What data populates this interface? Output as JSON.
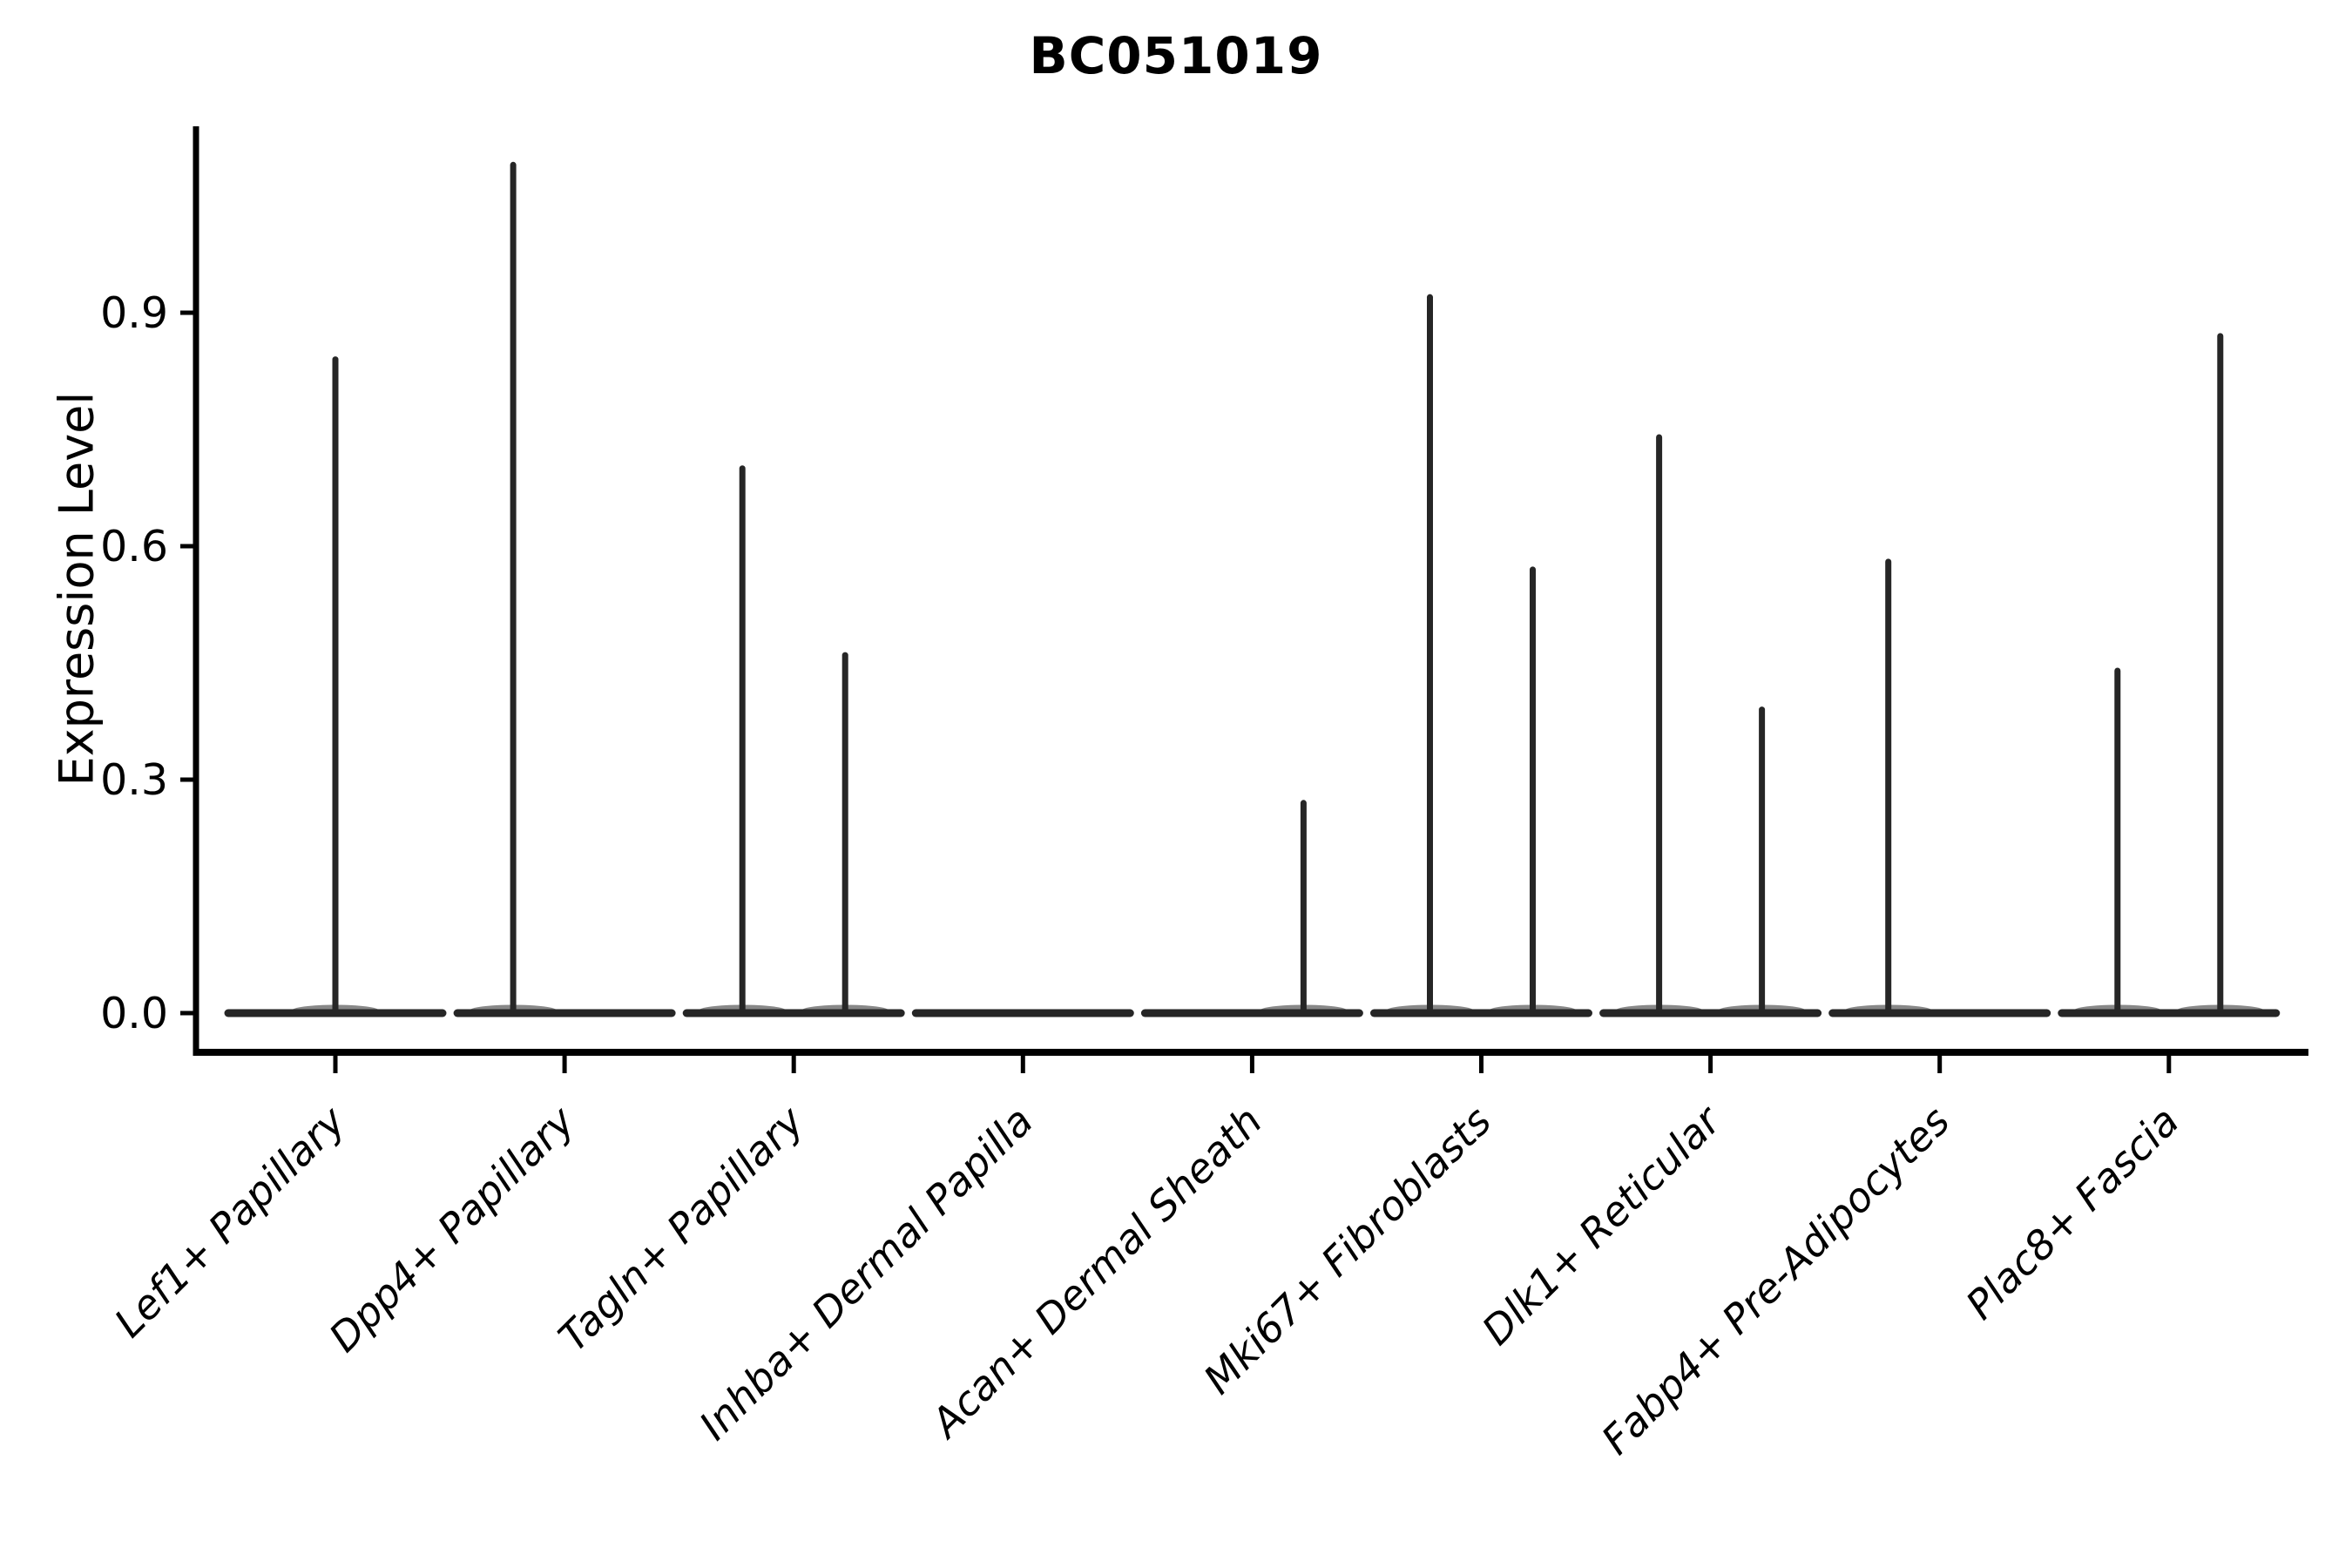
{
  "figure": {
    "title": "BC051019",
    "y_axis_label": "Expression Level"
  },
  "chart_data": {
    "type": "violin",
    "title": "BC051019",
    "xlabel": "",
    "ylabel": "Expression Level",
    "yticks": [
      0.0,
      0.3,
      0.6,
      0.9
    ],
    "ytick_labels": [
      "0.0",
      "0.3",
      "0.6",
      "0.9"
    ],
    "ylim": [
      -0.05,
      1.14
    ],
    "grid": false,
    "legend": null,
    "baseline_value": 0.0,
    "categories": [
      "Lef1+ Papillary",
      "Dpp4+ Papillary",
      "Tagln+ Papillary",
      "Inhba+ Dermal Papilla",
      "Acan+ Dermal Sheath",
      "Mki67+ Fibroblasts",
      "Dlk1+ Reticular",
      "Fabp4+ Pre-Adipocytes",
      "Plac8+ Fascia"
    ],
    "violins": [
      {
        "category": "Lef1+ Papillary",
        "spikes": [
          {
            "position": "center",
            "peak": 0.84
          }
        ]
      },
      {
        "category": "Dpp4+ Papillary",
        "spikes": [
          {
            "position": "left",
            "peak": 1.09
          }
        ]
      },
      {
        "category": "Tagln+ Papillary",
        "spikes": [
          {
            "position": "left",
            "peak": 0.7
          },
          {
            "position": "right",
            "peak": 0.46
          }
        ]
      },
      {
        "category": "Inhba+ Dermal Papilla",
        "spikes": []
      },
      {
        "category": "Acan+ Dermal Sheath",
        "spikes": [
          {
            "position": "right",
            "peak": 0.27
          }
        ]
      },
      {
        "category": "Mki67+ Fibroblasts",
        "spikes": [
          {
            "position": "left",
            "peak": 0.92
          },
          {
            "position": "right",
            "peak": 0.57
          }
        ]
      },
      {
        "category": "Dlk1+ Reticular",
        "spikes": [
          {
            "position": "left",
            "peak": 0.74
          },
          {
            "position": "right",
            "peak": 0.39
          }
        ]
      },
      {
        "category": "Fabp4+ Pre-Adipocytes",
        "spikes": [
          {
            "position": "left",
            "peak": 0.58
          }
        ]
      },
      {
        "category": "Plac8+ Fascia",
        "spikes": [
          {
            "position": "left",
            "peak": 0.44
          },
          {
            "position": "right",
            "peak": 0.87
          }
        ]
      }
    ],
    "colors": {
      "violin": "#262626",
      "axis": "#000000",
      "text": "#000000"
    }
  }
}
